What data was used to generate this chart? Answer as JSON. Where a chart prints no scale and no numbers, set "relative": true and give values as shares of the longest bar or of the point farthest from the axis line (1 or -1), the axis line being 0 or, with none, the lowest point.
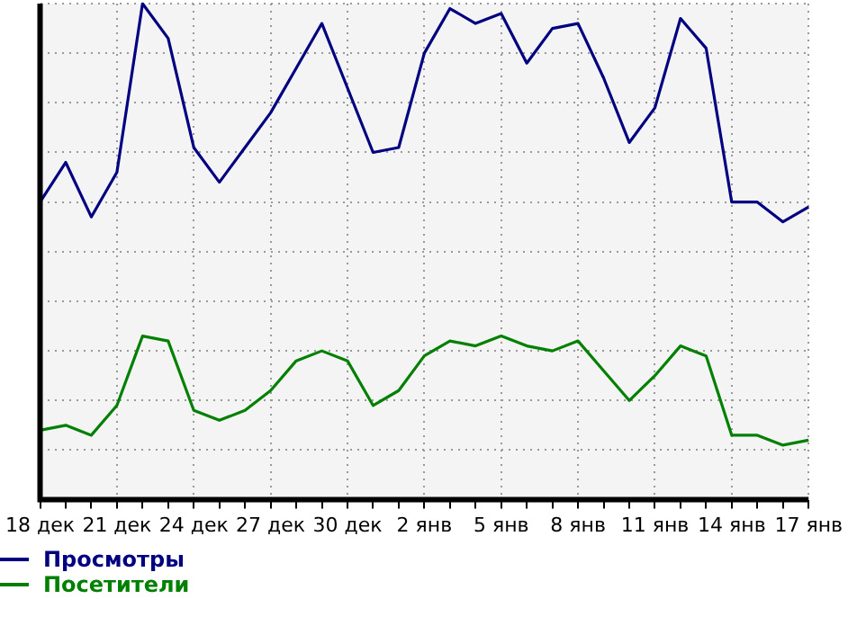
{
  "chart_data": {
    "type": "line",
    "relative": true,
    "grid": true,
    "legend": "bottom left",
    "marker": "none",
    "line_style": "solid",
    "categories": [
      "18 дек",
      null,
      null,
      "21 дек",
      null,
      null,
      "24 дек",
      null,
      null,
      "27 дек",
      null,
      null,
      "30 дек",
      null,
      null,
      "2 янв",
      null,
      null,
      "5 янв",
      null,
      null,
      "8 янв",
      null,
      null,
      "11 янв",
      null,
      null,
      "14 янв",
      null,
      null,
      "17 янв"
    ],
    "series": [
      {
        "name": "Просмотры",
        "color": "#000080",
        "values": [
          0.6,
          0.68,
          0.57,
          0.66,
          1,
          0.93,
          0.71,
          0.64,
          0.71,
          0.78,
          0.87,
          0.96,
          0.83,
          0.7,
          0.71,
          0.9,
          0.99,
          0.96,
          0.98,
          0.88,
          0.95,
          0.96,
          0.85,
          0.72,
          0.79,
          0.97,
          0.91,
          0.6,
          0.6,
          0.56,
          0.59
        ]
      },
      {
        "name": "Посетители",
        "color": "#008000",
        "values": [
          0.14,
          0.15,
          0.13,
          0.19,
          0.33,
          0.32,
          0.18,
          0.16,
          0.18,
          0.22,
          0.28,
          0.3,
          0.28,
          0.19,
          0.22,
          0.29,
          0.32,
          0.31,
          0.33,
          0.31,
          0.3,
          0.32,
          0.26,
          0.2,
          0.25,
          0.31,
          0.29,
          0.13,
          0.13,
          0.11,
          0.12
        ]
      }
    ]
  }
}
